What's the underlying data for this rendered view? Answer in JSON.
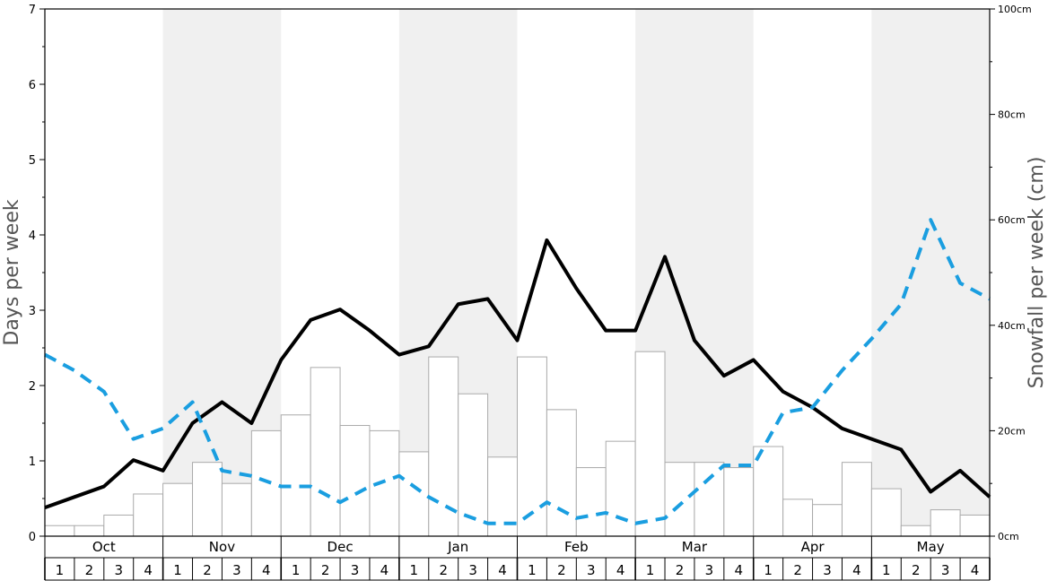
{
  "chart_data": {
    "type": "bar",
    "months": [
      "Oct",
      "Nov",
      "Dec",
      "Jan",
      "Feb",
      "Mar",
      "Apr",
      "May"
    ],
    "week_labels": [
      "1",
      "2",
      "3",
      "4"
    ],
    "ylabel": "Days per week",
    "y2label": "Snowfall per week (cm)",
    "ylim": [
      0,
      7
    ],
    "yticks": [
      "0",
      "1",
      "2",
      "3",
      "4",
      "5",
      "6",
      "7"
    ],
    "y2lim": [
      0,
      100
    ],
    "y2ticks": [
      "0cm",
      "20cm",
      "40cm",
      "60cm",
      "80cm",
      "100cm"
    ],
    "shaded_months": [
      "Nov",
      "Jan",
      "Mar",
      "May"
    ],
    "series": [
      {
        "kind": "bar",
        "axis": "right",
        "unit": "cm",
        "values": [
          2,
          2,
          4,
          8,
          10,
          14,
          10,
          20,
          23,
          32,
          21,
          20,
          16,
          34,
          27,
          15,
          34,
          24,
          13,
          18,
          35,
          14,
          14,
          13,
          17,
          7,
          6,
          14,
          9,
          2,
          5,
          4
        ],
        "color": "#ffffff",
        "stroke": "#aaaaaa"
      },
      {
        "kind": "line",
        "axis": "left",
        "style": "solid",
        "values": [
          0.38,
          0.52,
          0.66,
          1.01,
          0.87,
          1.5,
          1.78,
          1.5,
          2.34,
          2.87,
          3.01,
          2.73,
          2.41,
          2.52,
          3.08,
          3.15,
          2.6,
          3.93,
          3.29,
          2.73,
          2.73,
          3.71,
          2.6,
          2.13,
          2.34,
          1.92,
          1.71,
          1.43,
          1.29,
          1.15,
          0.59,
          0.87,
          0.52
        ],
        "color": "#000000"
      },
      {
        "kind": "line",
        "axis": "left",
        "style": "dashed",
        "values": [
          2.41,
          2.2,
          1.92,
          1.29,
          1.43,
          1.78,
          0.87,
          0.8,
          0.66,
          0.66,
          0.45,
          0.66,
          0.8,
          0.52,
          0.31,
          0.17,
          0.17,
          0.45,
          0.24,
          0.31,
          0.17,
          0.24,
          0.59,
          0.94,
          0.94,
          1.64,
          1.71,
          2.2,
          2.62,
          3.08,
          4.2,
          3.36,
          3.15
        ],
        "color": "#1a9ee0"
      }
    ]
  }
}
